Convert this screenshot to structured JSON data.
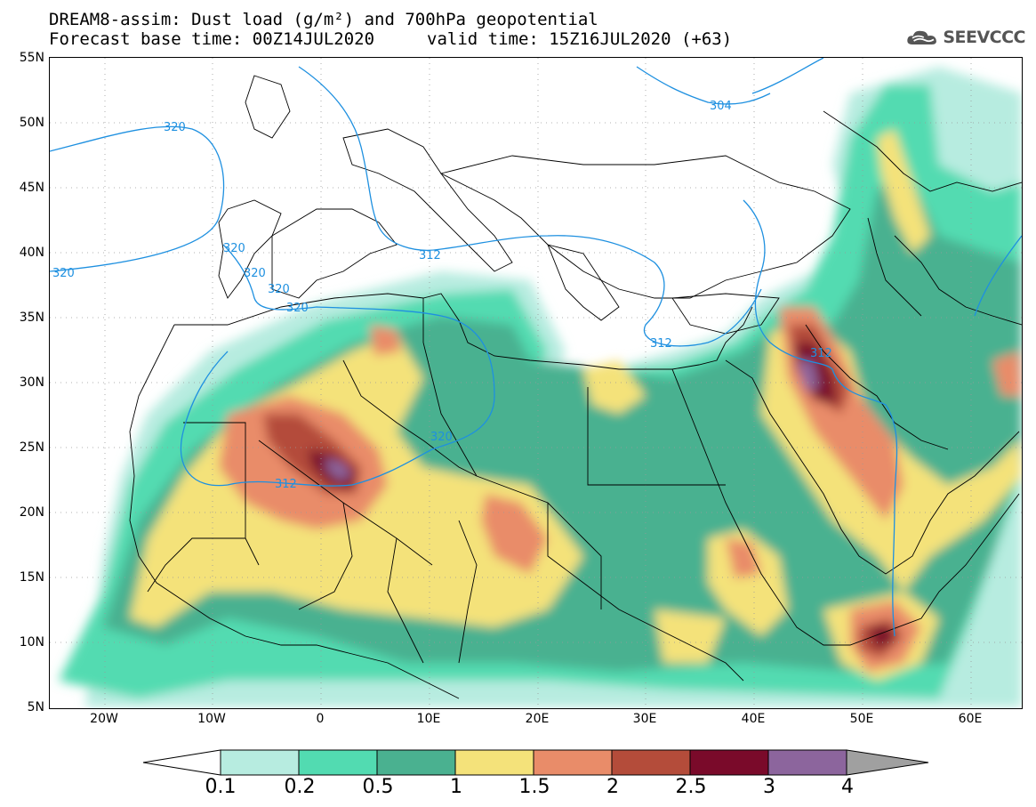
{
  "title": {
    "line1": "DREAM8-assim: Dust load (g/m²) and 700hPa geopotential",
    "line2_left": "Forecast base time: 00Z14JUL2020",
    "line2_right": "valid time: 15Z16JUL2020 (+63)"
  },
  "logo": {
    "text": "SEEVCCC",
    "icon": "cloud-icon"
  },
  "axes": {
    "lat_labels": [
      "55N",
      "50N",
      "45N",
      "40N",
      "35N",
      "30N",
      "25N",
      "20N",
      "15N",
      "10N",
      "5N"
    ],
    "lon_labels": [
      "20W",
      "10W",
      "0",
      "10E",
      "20E",
      "30E",
      "40E",
      "50E",
      "60E"
    ]
  },
  "contours": {
    "labels": [
      "320",
      "320",
      "320",
      "320",
      "320",
      "320",
      "320",
      "312",
      "312",
      "312",
      "304",
      "312"
    ]
  },
  "colorbar": {
    "labels": [
      "0.1",
      "0.2",
      "0.5",
      "1",
      "1.5",
      "2",
      "2.5",
      "3",
      "4"
    ],
    "colors": [
      "#ffffff",
      "#b7ece0",
      "#52dbb1",
      "#4ab190",
      "#f4e27a",
      "#e98c69",
      "#b44c3a",
      "#7a0a2a",
      "#8c659d",
      "#a0a0a0"
    ]
  }
}
